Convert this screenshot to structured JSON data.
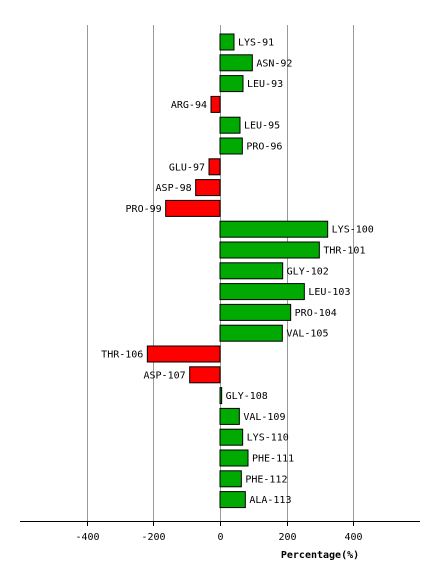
{
  "chart_data": {
    "type": "bar",
    "orientation": "horizontal",
    "xlabel": "Percentage(%)",
    "xlim": [
      -600,
      600
    ],
    "xticks": [
      -400,
      -200,
      0,
      200,
      400
    ],
    "grid": true,
    "colors": {
      "positive": "#00aa00",
      "negative": "#ff0000"
    },
    "categories": [
      "LYS-91",
      "ASN-92",
      "LEU-93",
      "ARG-94",
      "LEU-95",
      "PRO-96",
      "GLU-97",
      "ASP-98",
      "PRO-99",
      "LYS-100",
      "THR-101",
      "GLY-102",
      "LEU-103",
      "PRO-104",
      "VAL-105",
      "THR-106",
      "ASP-107",
      "GLY-108",
      "VAL-109",
      "LYS-110",
      "PHE-111",
      "PHE-112",
      "ALA-113"
    ],
    "values": [
      42,
      97,
      69,
      -27,
      60,
      67,
      -33,
      -73,
      -163,
      323,
      298,
      188,
      253,
      212,
      187,
      -218,
      -91,
      5,
      58,
      68,
      84,
      64,
      76
    ]
  }
}
